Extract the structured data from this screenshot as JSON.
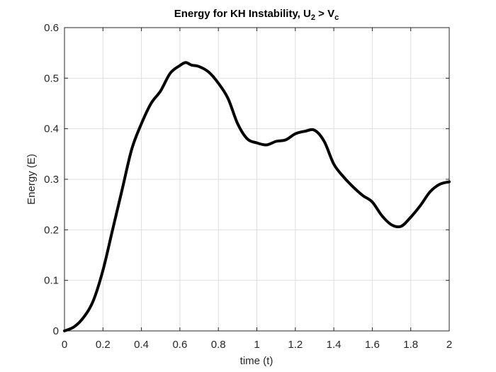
{
  "chart_data": {
    "type": "line",
    "title_main": "Energy for KH Instability, U",
    "title_sub1": "2",
    "title_mid": " > V",
    "title_sub2": "c",
    "xlabel": "time (t)",
    "ylabel": "Energy (E)",
    "xlim": [
      0,
      2
    ],
    "ylim": [
      0,
      0.6
    ],
    "xticks": [
      0,
      0.2,
      0.4,
      0.6,
      0.8,
      1,
      1.2,
      1.4,
      1.6,
      1.8,
      2
    ],
    "xtick_labels": [
      "0",
      "0.2",
      "0.4",
      "0.6",
      "0.8",
      "1",
      "1.2",
      "1.4",
      "1.6",
      "1.8",
      "2"
    ],
    "yticks": [
      0,
      0.1,
      0.2,
      0.3,
      0.4,
      0.5,
      0.6
    ],
    "ytick_labels": [
      "0",
      "0.1",
      "0.2",
      "0.3",
      "0.4",
      "0.5",
      "0.6"
    ],
    "grid": true,
    "line_color": "#000000",
    "series": [
      {
        "x": [
          0,
          0.05,
          0.1,
          0.15,
          0.2,
          0.25,
          0.3,
          0.35,
          0.4,
          0.45,
          0.5,
          0.55,
          0.6,
          0.63,
          0.66,
          0.7,
          0.75,
          0.8,
          0.85,
          0.9,
          0.95,
          1.0,
          1.05,
          1.1,
          1.15,
          1.2,
          1.25,
          1.3,
          1.35,
          1.4,
          1.45,
          1.5,
          1.55,
          1.6,
          1.65,
          1.7,
          1.75,
          1.8,
          1.85,
          1.9,
          1.95,
          2.0
        ],
        "y": [
          0,
          0.008,
          0.027,
          0.06,
          0.12,
          0.2,
          0.28,
          0.36,
          0.41,
          0.45,
          0.475,
          0.51,
          0.525,
          0.531,
          0.526,
          0.523,
          0.512,
          0.49,
          0.46,
          0.41,
          0.38,
          0.372,
          0.368,
          0.375,
          0.378,
          0.39,
          0.395,
          0.397,
          0.375,
          0.33,
          0.305,
          0.285,
          0.268,
          0.255,
          0.228,
          0.21,
          0.207,
          0.225,
          0.248,
          0.275,
          0.29,
          0.295
        ]
      }
    ]
  }
}
